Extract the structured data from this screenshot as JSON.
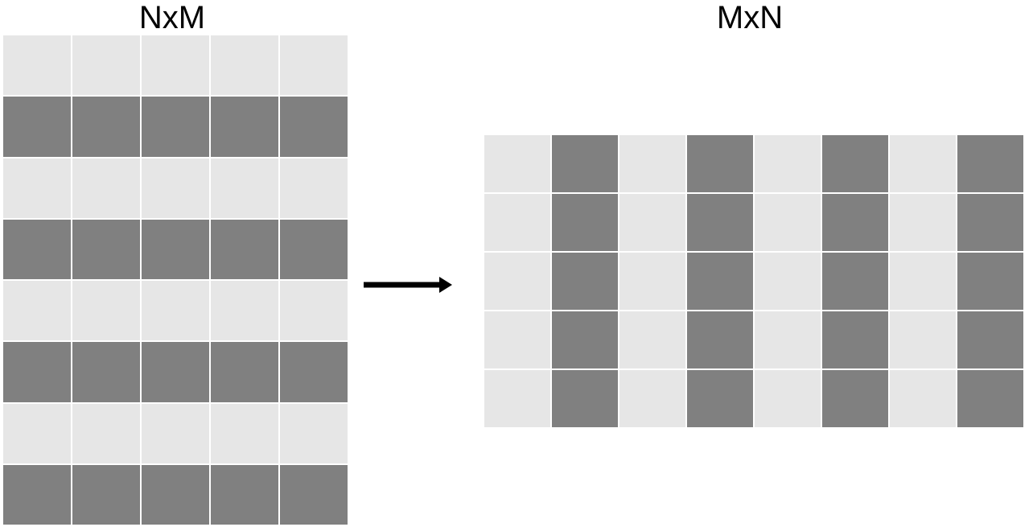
{
  "left_matrix": {
    "title": "NxM",
    "rows": 8,
    "cols": 5,
    "row_colors": [
      "light",
      "dark",
      "light",
      "dark",
      "light",
      "dark",
      "light",
      "dark"
    ]
  },
  "right_matrix": {
    "title": "MxN",
    "rows": 5,
    "cols": 8,
    "col_colors": [
      "light",
      "dark",
      "light",
      "dark",
      "light",
      "dark",
      "light",
      "dark"
    ]
  },
  "colors": {
    "light": "#e6e6e6",
    "dark": "#808080",
    "gap": "#ffffff",
    "arrow": "#000000"
  },
  "arrow": {
    "icon": "right-arrow-icon"
  }
}
